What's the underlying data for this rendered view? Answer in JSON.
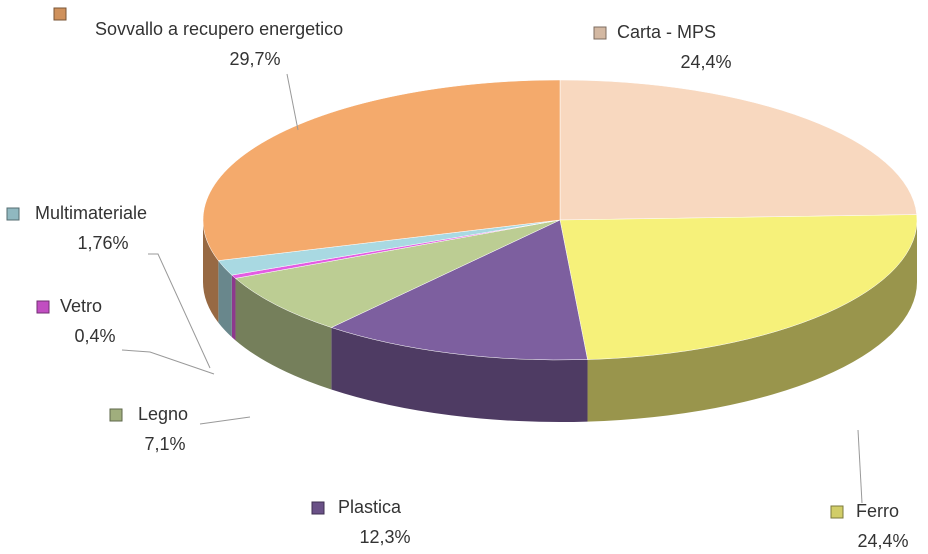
{
  "chart_data": {
    "type": "pie",
    "categories": [
      "Carta - MPS",
      "Ferro",
      "Plastica",
      "Legno",
      "Vetro",
      "Multimateriale",
      "Sovvallo a recupero energetico"
    ],
    "values": [
      24.4,
      24.4,
      12.3,
      7.1,
      0.4,
      1.76,
      29.7
    ],
    "value_labels": [
      "24,4%",
      "24,4%",
      "12,3%",
      "7,1%",
      "0,4%",
      "1,76%",
      "29,7%"
    ],
    "colors": [
      "#f8d8bf",
      "#f6f17a",
      "#7d5f9f",
      "#bccd93",
      "#e35ce3",
      "#a9d9e2",
      "#f4aa6c"
    ]
  }
}
